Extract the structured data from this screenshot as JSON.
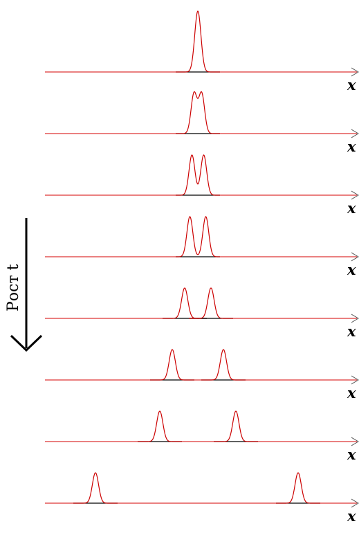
{
  "diagram": {
    "axis_label": "x",
    "time_label": "Рост t",
    "colors": {
      "axis": "#d40000",
      "curve": "#cc0000",
      "baseline": "#000000",
      "arrow": "#000000"
    },
    "panels": [
      {
        "pulses": [
          {
            "center": 0.0,
            "width": 1.0,
            "peaks": 1
          }
        ]
      },
      {
        "pulses": [
          {
            "center": 0.0,
            "width": 1.0,
            "peaks": 2,
            "separation": 0.55
          }
        ]
      },
      {
        "pulses": [
          {
            "center": 0.0,
            "width": 1.0,
            "peaks": 2,
            "separation": 0.85
          }
        ]
      },
      {
        "pulses": [
          {
            "center": 0.0,
            "width": 1.0,
            "peaks": 2,
            "separation": 1.15
          }
        ]
      },
      {
        "pulses": [
          {
            "center": -0.95,
            "width": 1.0,
            "peaks": 1
          },
          {
            "center": 0.95,
            "width": 1.0,
            "peaks": 1
          }
        ]
      },
      {
        "pulses": [
          {
            "center": -1.85,
            "width": 1.0,
            "peaks": 1
          },
          {
            "center": 1.85,
            "width": 1.0,
            "peaks": 1
          }
        ]
      },
      {
        "pulses": [
          {
            "center": -2.75,
            "width": 1.0,
            "peaks": 1
          },
          {
            "center": 2.75,
            "width": 1.0,
            "peaks": 1
          }
        ]
      },
      {
        "pulses": [
          {
            "center": -7.4,
            "width": 1.0,
            "peaks": 1
          },
          {
            "center": 7.25,
            "width": 1.0,
            "peaks": 1
          }
        ]
      }
    ]
  }
}
